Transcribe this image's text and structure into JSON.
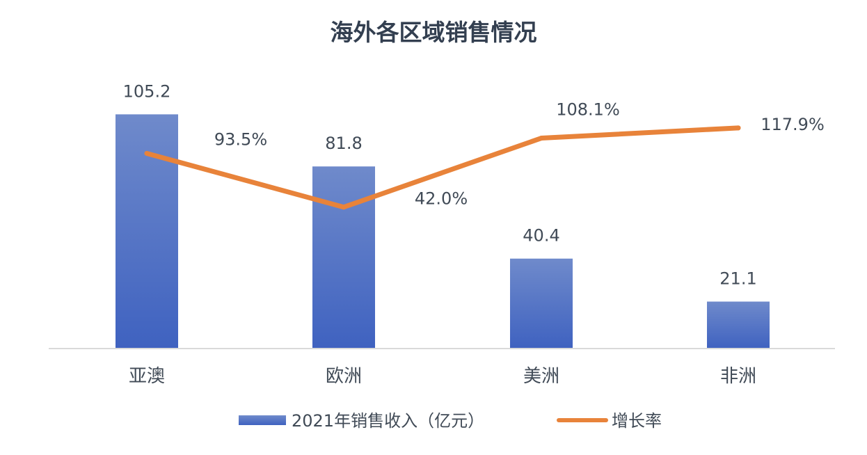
{
  "chart_data": {
    "type": "bar",
    "title": "海外各区域销售情况",
    "categories": [
      "亚澳",
      "欧洲",
      "美洲",
      "非洲"
    ],
    "series": [
      {
        "name": "2021年销售收入（亿元）",
        "type": "bar",
        "values": [
          105.2,
          81.8,
          40.4,
          21.1
        ],
        "labels": [
          "105.2",
          "81.8",
          "40.4",
          "21.1"
        ],
        "color": "#4a6cc6"
      },
      {
        "name": "增长率",
        "type": "line",
        "values": [
          93.5,
          42.0,
          108.1,
          117.9
        ],
        "labels": [
          "93.5%",
          "42.0%",
          "108.1%",
          "117.9%"
        ],
        "color": "#e8833a"
      }
    ],
    "legend_position": "bottom",
    "grid": false
  }
}
